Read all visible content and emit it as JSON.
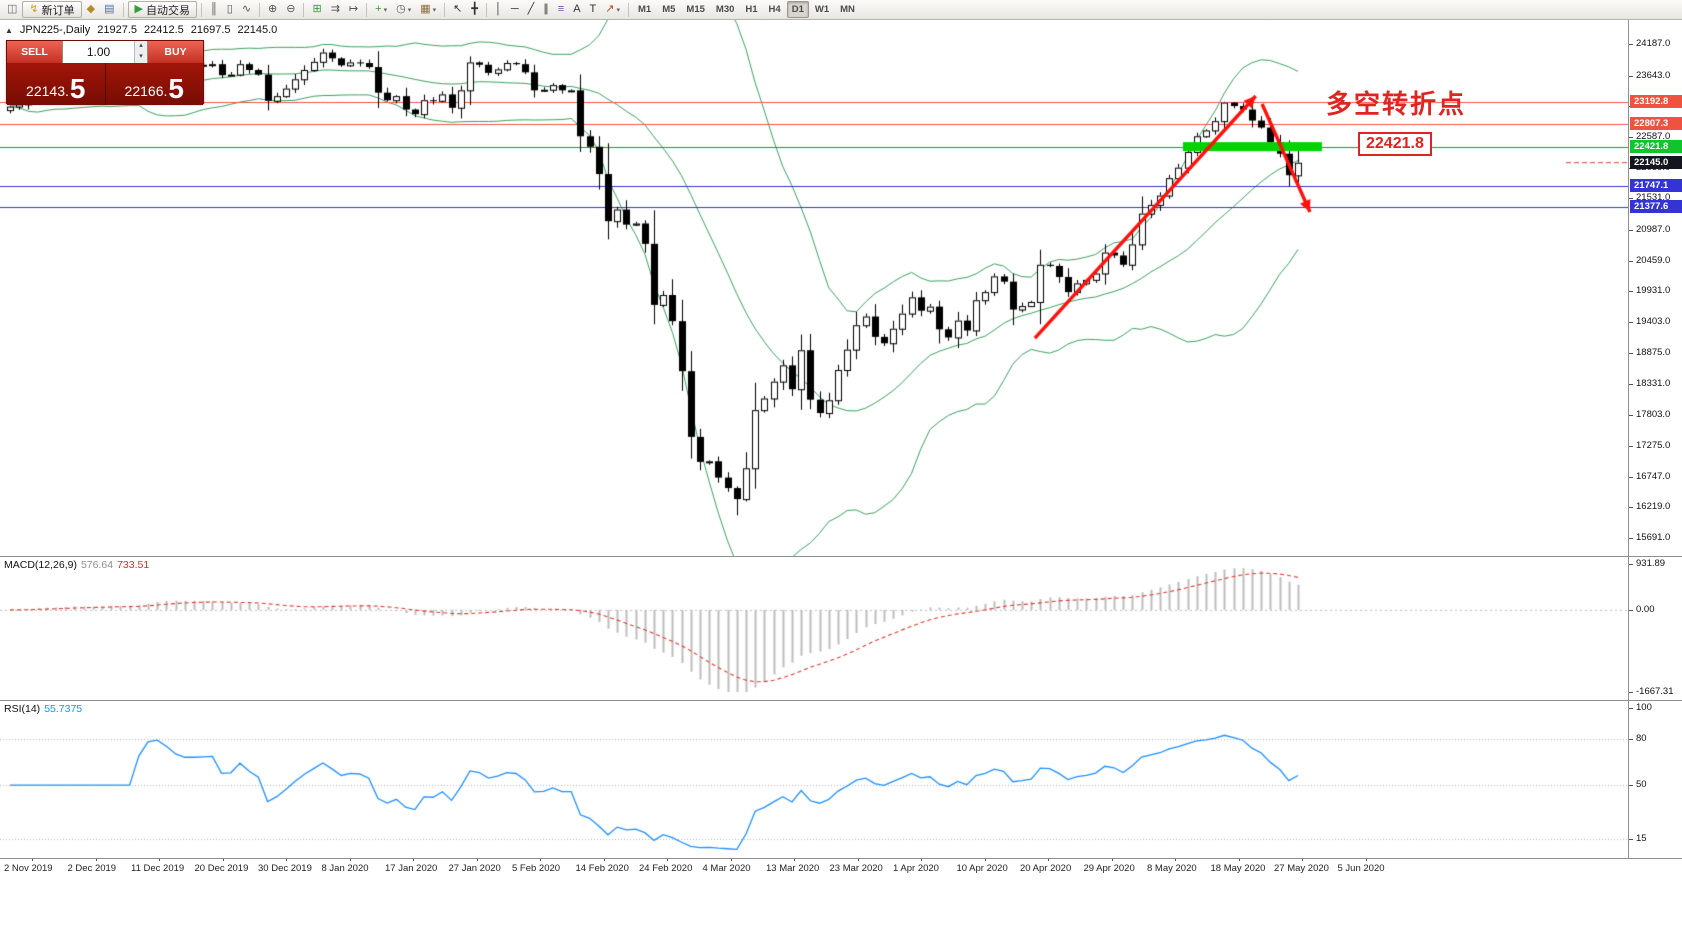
{
  "toolbar": {
    "items": [
      {
        "name": "new-chart-button",
        "glyph": "◫",
        "color": "#6b6b6b"
      },
      {
        "name": "new-order-button",
        "label": "新订单",
        "glyph": "↯",
        "color": "#d4a017"
      },
      {
        "name": "chart-profiles-button",
        "glyph": "◆",
        "color": "#b08d2f"
      },
      {
        "name": "data-window-button",
        "glyph": "▤",
        "color": "#4a6fa5"
      },
      {
        "sep": true
      },
      {
        "name": "auto-trading-button",
        "label": "自动交易",
        "glyph": "▶",
        "color": "#2e9e3f"
      },
      {
        "sep": true
      },
      {
        "name": "bar-chart-button",
        "glyph": "║",
        "color": "#555555"
      },
      {
        "name": "candlestick-chart-button",
        "glyph": "▯",
        "color": "#555555"
      },
      {
        "name": "line-chart-button",
        "glyph": "∿",
        "color": "#555555"
      },
      {
        "sep": true
      },
      {
        "name": "zoom-in-button",
        "glyph": "⊕",
        "color": "#555555"
      },
      {
        "name": "zoom-out-button",
        "glyph": "⊖",
        "color": "#555555"
      },
      {
        "sep": true
      },
      {
        "name": "tile-windows-button",
        "glyph": "⊞",
        "color": "#2e9e3f"
      },
      {
        "name": "auto-scroll-button",
        "glyph": "⇉",
        "color": "#555555"
      },
      {
        "name": "chart-shift-button",
        "glyph": "↦",
        "color": "#555555"
      },
      {
        "sep": true
      },
      {
        "name": "indicators-button",
        "glyph": "+",
        "color": "#2e9e3f",
        "dd": true
      },
      {
        "name": "periods-button",
        "glyph": "◷",
        "color": "#555555",
        "dd": true
      },
      {
        "name": "templates-button",
        "glyph": "▦",
        "color": "#8a6d3b",
        "dd": true
      },
      {
        "sep": true
      },
      {
        "name": "cursor-button",
        "glyph": "↖",
        "color": "#333333"
      },
      {
        "name": "crosshair-button",
        "glyph": "╋",
        "color": "#333333"
      },
      {
        "sep": true
      },
      {
        "name": "vertical-line-button",
        "glyph": "│",
        "color": "#333333"
      },
      {
        "name": "horizontal-line-button",
        "glyph": "─",
        "color": "#333333"
      },
      {
        "name": "trendline-button",
        "glyph": "╱",
        "color": "#333333"
      },
      {
        "name": "channel-button",
        "glyph": "∥",
        "color": "#333333"
      },
      {
        "name": "fibonacci-button",
        "glyph": "≡",
        "color": "#7a4fa0"
      },
      {
        "name": "text-button",
        "glyph": "A",
        "color": "#333333"
      },
      {
        "name": "label-button",
        "glyph": "T",
        "color": "#333333"
      },
      {
        "name": "arrows-button",
        "glyph": "↗",
        "color": "#c24914",
        "dd": true
      },
      {
        "sep": true
      },
      {
        "name": "timeframe-m1-button",
        "label": "M1",
        "tf": true
      },
      {
        "name": "timeframe-m5-button",
        "label": "M5",
        "tf": true
      },
      {
        "name": "timeframe-m15-button",
        "label": "M15",
        "tf": true
      },
      {
        "name": "timeframe-m30-button",
        "label": "M30",
        "tf": true
      },
      {
        "name": "timeframe-h1-button",
        "label": "H1",
        "tf": true
      },
      {
        "name": "timeframe-h4-button",
        "label": "H4",
        "tf": true
      },
      {
        "name": "timeframe-d1-button",
        "label": "D1",
        "tf": true,
        "active": true
      },
      {
        "name": "timeframe-w1-button",
        "label": "W1",
        "tf": true
      },
      {
        "name": "timeframe-mn-button",
        "label": "MN",
        "tf": true
      }
    ]
  },
  "chart": {
    "symbol_label": "JPN225-,Daily",
    "ohlc": {
      "open": "21927.5",
      "high": "22412.5",
      "low": "21697.5",
      "close": "22145.0"
    }
  },
  "trade_panel": {
    "sell_label": "SELL",
    "buy_label": "BUY",
    "volume": "1.00",
    "sell_price_main": "22143.",
    "sell_price_big": "5",
    "buy_price_main": "22166.",
    "buy_price_big": "5"
  },
  "annotations": {
    "turning_point": "多空转折点",
    "boxed_price": "22421.8"
  },
  "price_axis": {
    "ticks": [
      "24187.0",
      "23643.0",
      "23115.0",
      "22587.0",
      "22059.0",
      "21531.0",
      "20987.0",
      "20459.0",
      "19931.0",
      "19403.0",
      "18875.0",
      "18331.0",
      "17803.0",
      "17275.0",
      "16747.0",
      "16219.0",
      "15691.0"
    ],
    "tags": [
      {
        "label": "23192.8",
        "bg": "#ef5340"
      },
      {
        "label": "22807.3",
        "bg": "#ef5340"
      },
      {
        "label": "22421.8",
        "bg": "#0fc42c"
      },
      {
        "label": "22145.0",
        "bg": "#15151e"
      },
      {
        "label": "21747.1",
        "bg": "#3434d6"
      },
      {
        "label": "21377.6",
        "bg": "#3434d6"
      }
    ]
  },
  "macd": {
    "label": "MACD(12,26,9)",
    "value_main": "576.64",
    "value_signal": "733.51",
    "scale_max": "931.89",
    "scale_zero": "0.00",
    "scale_min": "-1667.31"
  },
  "rsi": {
    "label": "RSI(14)",
    "value": "55.7375",
    "levels": [
      "100",
      "80",
      "50",
      "15"
    ]
  },
  "time_axis": [
    "2 Nov 2019",
    "2 Dec 2019",
    "11 Dec 2019",
    "20 Dec 2019",
    "30 Dec 2019",
    "8 Jan 2020",
    "17 Jan 2020",
    "27 Jan 2020",
    "5 Feb 2020",
    "14 Feb 2020",
    "24 Feb 2020",
    "4 Mar 2020",
    "13 Mar 2020",
    "23 Mar 2020",
    "1 Apr 2020",
    "10 Apr 2020",
    "20 Apr 2020",
    "29 Apr 2020",
    "8 May 2020",
    "18 May 2020",
    "27 May 2020",
    "5 Jun 2020"
  ],
  "chart_data": {
    "type": "candlestick",
    "symbol": "JPN225-",
    "timeframe": "Daily",
    "y_axis_top": 24187.0,
    "y_axis_bottom": 15691.0,
    "closes": [
      23110,
      23150,
      23290,
      23380,
      23300,
      23320,
      23430,
      23390,
      23300,
      23350,
      23410,
      23520,
      23390,
      23430,
      23520,
      23950,
      24020,
      23950,
      23860,
      23820,
      23820,
      23830,
      23840,
      23650,
      23660,
      23840,
      23740,
      23660,
      23210,
      23290,
      23420,
      23580,
      23740,
      23880,
      24040,
      23940,
      23820,
      23870,
      23860,
      23790,
      23350,
      23220,
      23290,
      23060,
      22980,
      23220,
      23210,
      23320,
      23090,
      23390,
      23870,
      23830,
      23690,
      23750,
      23860,
      23840,
      23700,
      23390,
      23400,
      23480,
      23390,
      23390,
      22600,
      22420,
      21950,
      21140,
      21340,
      21080,
      21100,
      20750,
      19700,
      19870,
      19420,
      18560,
      17430,
      17000,
      17010,
      16730,
      16550,
      16360,
      16890,
      17890,
      18090,
      18380,
      18660,
      18250,
      18920,
      18070,
      17840,
      18060,
      18580,
      18930,
      19350,
      19500,
      19150,
      19040,
      19290,
      19550,
      19830,
      19600,
      19670,
      19280,
      19140,
      19430,
      19260,
      19780,
      19920,
      20190,
      20100,
      19620,
      19680,
      19750,
      20390,
      20370,
      20180,
      19920,
      20070,
      20130,
      20240,
      20600,
      20550,
      20390,
      20740,
      21270,
      21420,
      21580,
      21880,
      22060,
      22330,
      22600,
      22700,
      22860,
      23180,
      23120,
      23060,
      22870,
      22750,
      22500,
      22300,
      21930,
      22145
    ],
    "candle_overrides": {
      "79": {
        "low": 16080
      },
      "80": {
        "low": 16320
      },
      "132": {
        "high": 23192.8
      },
      "133": {
        "high": 23185
      },
      "140": {
        "open": 21927.5,
        "high": 22412.5,
        "low": 21697.5,
        "close": 22145.0
      }
    },
    "bollinger_color": "#3da15f",
    "levels": [
      {
        "price": 23192.8,
        "line_color": "#f2564a"
      },
      {
        "price": 22807.3,
        "line_color": "#f2564a"
      },
      {
        "price": 22421.8,
        "line_color": "#00a81c"
      },
      {
        "price": 21747.1,
        "line_color": "#3434d6"
      },
      {
        "price": 21377.6,
        "line_color": "#3434d6"
      }
    ],
    "current_price": 22145.0,
    "green_rectangle": {
      "from_index": 127.5,
      "to_index": 142.6,
      "price": 22421.8,
      "color": "#00d400"
    },
    "trend_arrows": [
      {
        "from_index": 111.4,
        "from_price": 19130,
        "to_index": 135.4,
        "to_price": 23293
      },
      {
        "from_index": 136.1,
        "from_price": 23155,
        "to_index": 141.3,
        "to_price": 21297
      }
    ],
    "indicators": {
      "bollinger": {
        "period": 20,
        "deviation": 2
      },
      "macd": {
        "fast": 12,
        "slow": 26,
        "signal": 9
      },
      "rsi": {
        "period": 14
      }
    }
  }
}
